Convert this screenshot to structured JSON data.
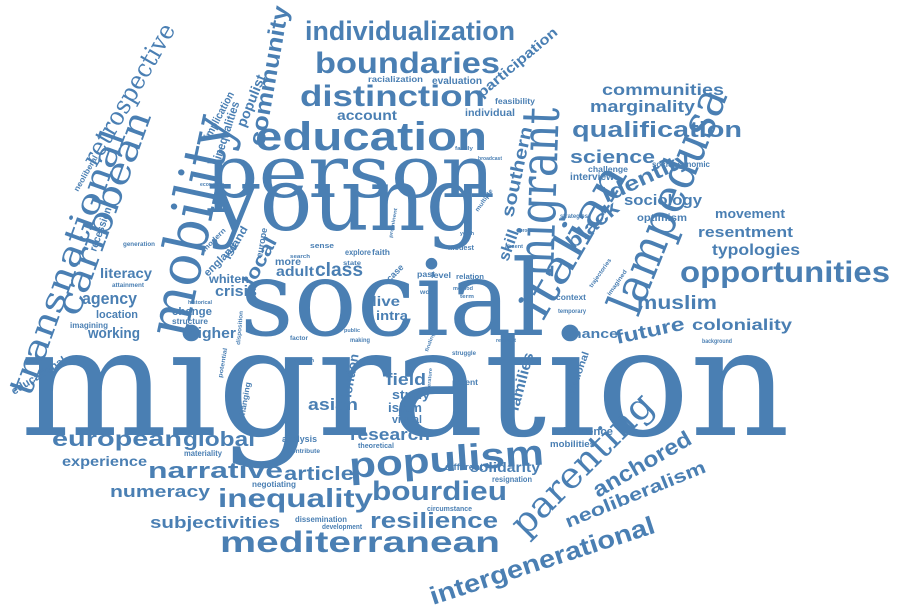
{
  "colors": {
    "word": "#4a7fb3",
    "background": "#ffffff"
  },
  "words": {
    "migration": "migration",
    "social": "social",
    "young": "young",
    "person": "person",
    "education": "education",
    "mobility": "mobility",
    "caribbean": "caribbean",
    "transnational": "transnational",
    "retrospective": "retrospective",
    "community": "community",
    "individualization": "individualization",
    "boundaries": "boundaries",
    "distinction": "distinction",
    "migrant": "migrant",
    "lampedusa": "lampedusa",
    "italian": "italian",
    "opportunities": "opportunities",
    "communities": "communities",
    "marginality": "marginality",
    "qualification": "qualification",
    "science": "science",
    "identity": "identity",
    "sociology": "sociology",
    "black": "black",
    "southern": "southern",
    "typologies": "typologies",
    "resentment": "resentment",
    "movement": "movement",
    "optimism": "optimism",
    "muslim": "muslim",
    "coloniality": "coloniality",
    "future": "future",
    "chance": "chance",
    "participation": "participation",
    "evaluation": "evaluation",
    "racialization": "racialization",
    "account": "account",
    "individual": "individual",
    "feasibility": "feasibility",
    "populist": "populist",
    "inequalities": "inequalities",
    "implication": "implication",
    "neoliberal": "neoliberal",
    "recession": "recession",
    "literacy": "literacy",
    "agency": "agency",
    "location": "location",
    "working": "working",
    "educational": "educational",
    "imagining": "imagining",
    "class": "class",
    "local": "local",
    "adult": "adult",
    "crisis": "crisis",
    "higher": "higher",
    "change": "change",
    "structure": "structure",
    "whiten": "whiten",
    "england": "england",
    "island": "island",
    "modern": "modern",
    "europe": "europe",
    "live": "live",
    "intra": "intra",
    "skill": "skill",
    "explore": "explore",
    "faith": "faith",
    "populism": "populism",
    "bourdieu": "bourdieu",
    "resilience": "resilience",
    "mediterranean": "mediterranean",
    "inequality": "inequality",
    "narrative": "narrative",
    "article": "article",
    "numeracy": "numeracy",
    "subjectivities": "subjectivities",
    "european": "european",
    "global": "global",
    "experience": "experience",
    "research": "research",
    "asian": "asian",
    "london": "london",
    "field": "field",
    "study": "study",
    "islam": "islam",
    "visual": "visual",
    "families": "families",
    "relational": "relational",
    "parenting": "parenting",
    "anchored": "anchored",
    "neoliberalism": "neoliberalism",
    "intergenerational": "intergenerational",
    "solidarity": "solidarity",
    "influence": "influence",
    "mobilities": "mobilities",
    "different": "different",
    "resignation": "resignation",
    "circumstance": "circumstance",
    "dissemination": "dissemination",
    "negotiating": "negotiating",
    "development": "development",
    "materiality": "materiality",
    "analysis": "analysis",
    "contribute": "contribute",
    "theoretical": "theoretical",
    "challenge": "challenge",
    "interview": "interview",
    "socioeconomic": "socioeconomic",
    "strategies": "strategies",
    "context": "context",
    "trajectories": "trajectories",
    "temporary": "temporary",
    "background": "background",
    "more": "more",
    "sense": "sense",
    "level": "level",
    "relation": "relation",
    "modest": "modest",
    "past": "past",
    "work": "work",
    "case": "case",
    "potential": "potential",
    "changing": "changing",
    "generation": "generation",
    "attainment": "attainment",
    "historical": "historical",
    "economic": "economic",
    "factor": "factor",
    "making": "making",
    "struggle": "struggle",
    "parent": "parent",
    "literature": "literature",
    "family": "family",
    "term": "term",
    "broadcast": "broadcast",
    "multiple": "multiple",
    "processes": "processes",
    "prominent": "prominent",
    "imagined": "imagined",
    "state": "state",
    "method": "method",
    "search": "search",
    "relevant": "relevant",
    "finding": "finding",
    "public": "public",
    "concern": "concern",
    "disposition": "disposition",
    "absent": "absent",
    "youth": "youth"
  }
}
